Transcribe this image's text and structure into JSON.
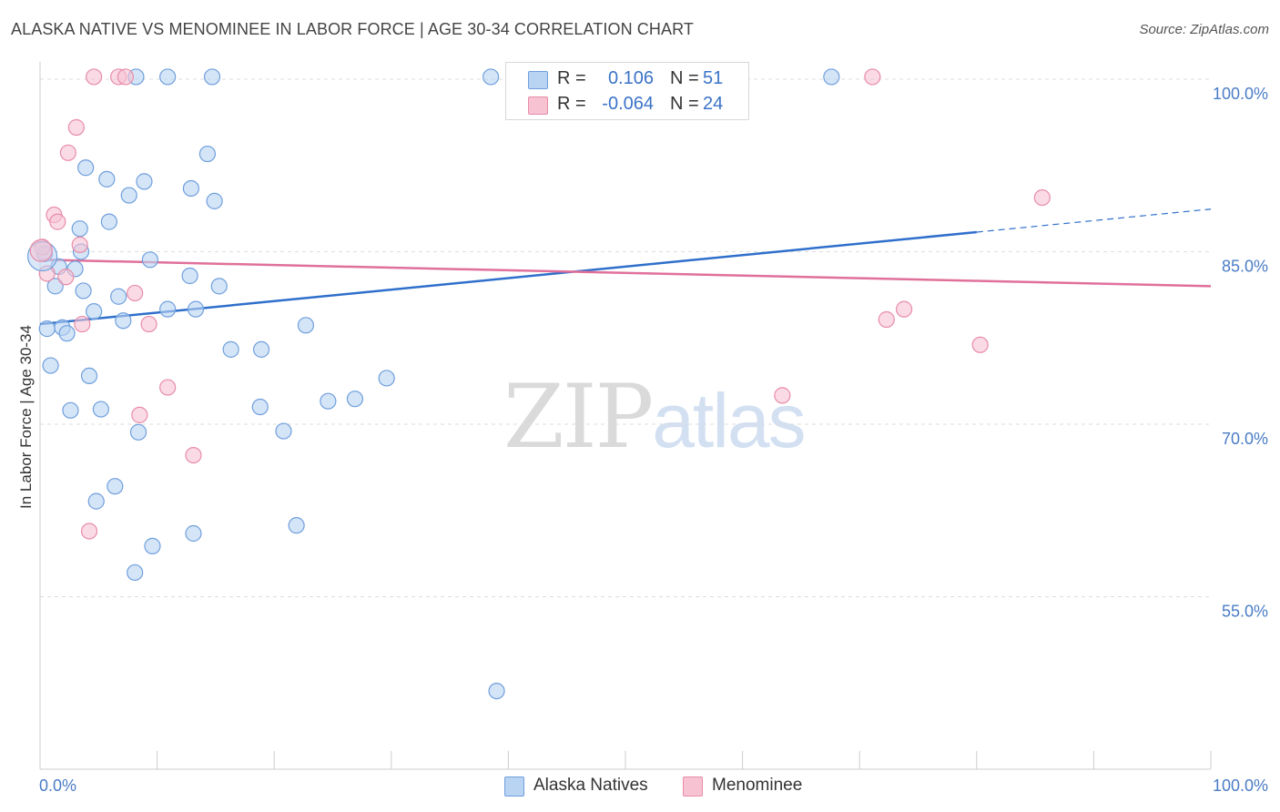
{
  "title": "ALASKA NATIVE VS MENOMINEE IN LABOR FORCE | AGE 30-34 CORRELATION CHART",
  "source": "Source: ZipAtlas.com",
  "watermark": {
    "zip": "ZIP",
    "atlas": "atlas"
  },
  "legend_stats": [
    {
      "r_label": "R =",
      "r_value": "0.106",
      "n_label": "N =",
      "n_value": "51"
    },
    {
      "r_label": "R =",
      "r_value": "-0.064",
      "n_label": "N =",
      "n_value": "24"
    }
  ],
  "colors": {
    "blue_fill": "#b9d3f3",
    "blue_stroke": "#6f9fdc",
    "blue_line": "#2f6fcb",
    "pink_fill": "#f7c3d3",
    "pink_stroke": "#e88ca8",
    "pink_line": "#e0709a",
    "tick_text": "#4a7cc6",
    "grid": "#dddddd"
  },
  "chart_data": {
    "type": "scatter",
    "title": "ALASKA NATIVE VS MENOMINEE IN LABOR FORCE | AGE 30-34 CORRELATION CHART",
    "xlabel": "",
    "ylabel": "In Labor Force | Age 30-34",
    "xlim": [
      0,
      100
    ],
    "ylim": [
      40,
      101.5
    ],
    "x_tick_labels": {
      "left": "0.0%",
      "right": "100.0%"
    },
    "y_ticks": [
      {
        "value": 100,
        "label": "100.0%"
      },
      {
        "value": 85,
        "label": "85.0%"
      },
      {
        "value": 70,
        "label": "70.0%"
      },
      {
        "value": 55,
        "label": "55.0%"
      }
    ],
    "series": [
      {
        "name": "Alaska Natives",
        "color": "blue",
        "trend": {
          "x0": 0,
          "y0": 78.7,
          "x1": 80,
          "y1": 86.7,
          "dashed_to_x": 100,
          "dashed_to_y": 88.7
        },
        "points": [
          [
            0.4,
            84.8
          ],
          [
            0.6,
            78.3
          ],
          [
            0.9,
            75.1
          ],
          [
            1.3,
            82.0
          ],
          [
            1.6,
            83.7
          ],
          [
            1.9,
            78.4
          ],
          [
            2.3,
            77.9
          ],
          [
            2.6,
            71.2
          ],
          [
            3.0,
            83.5
          ],
          [
            3.4,
            87.0
          ],
          [
            3.7,
            81.6
          ],
          [
            3.9,
            92.3
          ],
          [
            4.2,
            74.2
          ],
          [
            4.6,
            79.8
          ],
          [
            4.8,
            63.3
          ],
          [
            5.2,
            71.3
          ],
          [
            5.7,
            91.3
          ],
          [
            5.9,
            87.6
          ],
          [
            6.4,
            64.6
          ],
          [
            6.7,
            81.1
          ],
          [
            7.1,
            79.0
          ],
          [
            7.6,
            89.9
          ],
          [
            8.1,
            57.1
          ],
          [
            8.4,
            69.3
          ],
          [
            8.9,
            91.1
          ],
          [
            9.4,
            84.3
          ],
          [
            9.6,
            59.4
          ],
          [
            10.9,
            80.0
          ],
          [
            12.8,
            82.9
          ],
          [
            12.9,
            90.5
          ],
          [
            13.1,
            60.5
          ],
          [
            13.3,
            80.0
          ],
          [
            14.3,
            93.5
          ],
          [
            14.9,
            89.4
          ],
          [
            15.3,
            82.0
          ],
          [
            16.3,
            76.5
          ],
          [
            18.8,
            71.5
          ],
          [
            18.9,
            76.5
          ],
          [
            20.8,
            69.4
          ],
          [
            21.9,
            61.2
          ],
          [
            22.7,
            78.6
          ],
          [
            24.6,
            72.0
          ],
          [
            26.9,
            72.2
          ],
          [
            29.6,
            74.0
          ],
          [
            38.5,
            100.2
          ],
          [
            39.0,
            46.8
          ],
          [
            67.6,
            100.2
          ],
          [
            8.2,
            100.2
          ],
          [
            10.9,
            100.2
          ],
          [
            14.7,
            100.2
          ],
          [
            3.5,
            85.0
          ]
        ]
      },
      {
        "name": "Menominee",
        "color": "pink",
        "trend": {
          "x0": 0,
          "y0": 84.3,
          "x1": 100,
          "y1": 82.0
        },
        "points": [
          [
            0.2,
            85.4
          ],
          [
            0.6,
            83.1
          ],
          [
            1.2,
            88.2
          ],
          [
            1.5,
            87.6
          ],
          [
            2.2,
            82.8
          ],
          [
            2.4,
            93.6
          ],
          [
            3.1,
            95.8
          ],
          [
            3.4,
            85.6
          ],
          [
            3.6,
            78.7
          ],
          [
            4.2,
            60.7
          ],
          [
            4.6,
            100.2
          ],
          [
            6.7,
            100.2
          ],
          [
            7.3,
            100.2
          ],
          [
            8.1,
            81.4
          ],
          [
            8.5,
            70.8
          ],
          [
            9.3,
            78.7
          ],
          [
            10.9,
            73.2
          ],
          [
            13.1,
            67.3
          ],
          [
            63.4,
            72.5
          ],
          [
            71.1,
            100.2
          ],
          [
            72.3,
            79.1
          ],
          [
            73.8,
            80.0
          ],
          [
            80.3,
            76.9
          ],
          [
            85.6,
            89.7
          ]
        ]
      }
    ]
  }
}
